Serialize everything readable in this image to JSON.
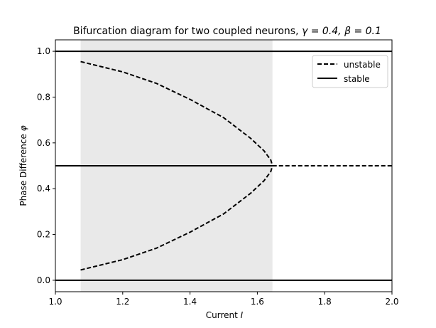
{
  "chart_data": {
    "type": "line",
    "title_main": "Bifurcation diagram for two coupled neurons, ",
    "title_math": "γ = 0.4, β = 0.1",
    "xlabel_main": "Current ",
    "xlabel_math": "I",
    "ylabel_main": "Phase Difference ",
    "ylabel_math": "φ",
    "xlim": [
      1.0,
      2.0
    ],
    "ylim": [
      -0.05,
      1.05
    ],
    "xticks": [
      "1.0",
      "1.2",
      "1.4",
      "1.6",
      "1.8",
      "2.0"
    ],
    "yticks": [
      "0.0",
      "0.2",
      "0.4",
      "0.6",
      "0.8",
      "1.0"
    ],
    "shaded_region": [
      1.075,
      1.645
    ],
    "bifurcation_point": {
      "x": 1.645,
      "y": 0.5
    },
    "legend": {
      "position": "upper right",
      "entries": [
        {
          "label": "unstable",
          "style": "dashed"
        },
        {
          "label": "stable",
          "style": "solid"
        }
      ]
    },
    "series": [
      {
        "style": "solid",
        "x": [
          1.0,
          2.0
        ],
        "y": [
          1.0,
          1.0
        ]
      },
      {
        "style": "solid",
        "x": [
          1.0,
          2.0
        ],
        "y": [
          0.0,
          0.0
        ]
      },
      {
        "style": "solid",
        "x": [
          1.0,
          1.645
        ],
        "y": [
          0.5,
          0.5
        ]
      },
      {
        "style": "dashed",
        "x": [
          1.645,
          2.0
        ],
        "y": [
          0.5,
          0.5
        ]
      },
      {
        "style": "dashed",
        "x": [
          1.075,
          1.2,
          1.3,
          1.4,
          1.5,
          1.58,
          1.62,
          1.64,
          1.645
        ],
        "y": [
          0.955,
          0.91,
          0.86,
          0.79,
          0.71,
          0.62,
          0.565,
          0.525,
          0.5
        ]
      },
      {
        "style": "dashed",
        "x": [
          1.075,
          1.2,
          1.3,
          1.4,
          1.5,
          1.58,
          1.62,
          1.64,
          1.645
        ],
        "y": [
          0.045,
          0.09,
          0.14,
          0.21,
          0.29,
          0.38,
          0.435,
          0.475,
          0.5
        ]
      }
    ],
    "colors": {
      "line": "#000000",
      "shade": "#e9e9e9",
      "legend_border": "#cccccc"
    }
  }
}
